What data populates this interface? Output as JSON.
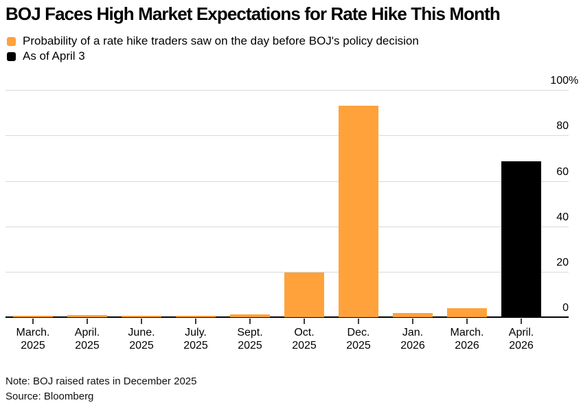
{
  "page": {
    "title": "BOJ Faces High Market Expectations for Rate Hike This Month",
    "note": "Note: BOJ raised rates in December 2025",
    "source": "Source: Bloomberg"
  },
  "chart_data": {
    "type": "bar",
    "title": "BOJ Faces High Market Expectations for Rate Hike This Month",
    "xlabel": "",
    "ylabel": "%",
    "ylim": [
      0,
      100
    ],
    "grid": "horizontal",
    "legend_position": "top-left",
    "legend": [
      {
        "series": "traders",
        "label": "Probability of a rate hike traders saw on the day before BOJ's policy decision",
        "color": "#FFA23B"
      },
      {
        "series": "april3",
        "label": "As of April 3",
        "color": "#000000"
      }
    ],
    "y_axis_ticks": [
      {
        "value": 100,
        "label": "100",
        "suffix": "%"
      },
      {
        "value": 80,
        "label": "80",
        "suffix": ""
      },
      {
        "value": 60,
        "label": "60",
        "suffix": ""
      },
      {
        "value": 40,
        "label": "40",
        "suffix": ""
      },
      {
        "value": 20,
        "label": "20",
        "suffix": ""
      },
      {
        "value": 0,
        "label": "0",
        "suffix": ""
      }
    ],
    "categories": [
      "March. 2025",
      "April. 2025",
      "June. 2025",
      "July. 2025",
      "Sept. 2025",
      "Oct. 2025",
      "Dec. 2025",
      "Jan. 2026",
      "March. 2026",
      "April. 2026"
    ],
    "bars": [
      {
        "month": "March.",
        "year": "2025",
        "value": 0.7,
        "series": "traders"
      },
      {
        "month": "April.",
        "year": "2025",
        "value": 0.9,
        "series": "traders"
      },
      {
        "month": "June.",
        "year": "2025",
        "value": 0.7,
        "series": "traders"
      },
      {
        "month": "July.",
        "year": "2025",
        "value": 0.7,
        "series": "traders"
      },
      {
        "month": "Sept.",
        "year": "2025",
        "value": 1.1,
        "series": "traders"
      },
      {
        "month": "Oct.",
        "year": "2025",
        "value": 19.7,
        "series": "traders"
      },
      {
        "month": "Dec.",
        "year": "2025",
        "value": 93,
        "series": "traders"
      },
      {
        "month": "Jan.",
        "year": "2026",
        "value": 1.9,
        "series": "traders"
      },
      {
        "month": "March.",
        "year": "2026",
        "value": 3.9,
        "series": "traders"
      },
      {
        "month": "April.",
        "year": "2026",
        "value": 68.5,
        "series": "april3"
      }
    ],
    "note": "Note: BOJ raised rates in December 2025",
    "source": "Source: Bloomberg"
  }
}
